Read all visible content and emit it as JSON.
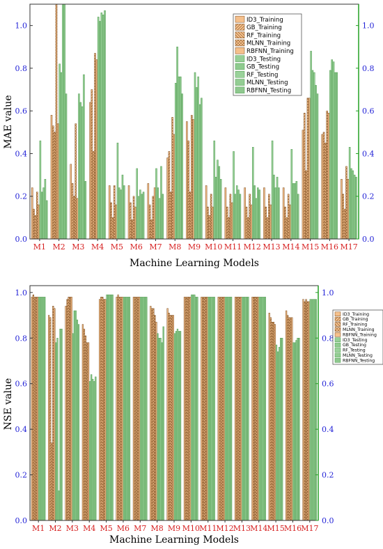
{
  "colors": {
    "training": "#f5c08c",
    "training_stroke": "#7a4a1c",
    "testing": "#97cf97",
    "testing_stroke": "#4f9a4f",
    "right_axis": "#22a022",
    "tick_text": "#1f1fd6",
    "category_text": "#d62020"
  },
  "chart_data": [
    {
      "type": "bar",
      "ylabel": "MAE value",
      "xlabel": "Machine Learning Models",
      "ylim": [
        0,
        1.1
      ],
      "yticks": [
        "0.0",
        "0.2",
        "0.4",
        "0.6",
        "0.8",
        "1.0"
      ],
      "categories": [
        "M1",
        "M2",
        "M3",
        "M4",
        "M5",
        "M6",
        "M7",
        "M8",
        "M9",
        "M10",
        "M11",
        "M12",
        "M13",
        "M14",
        "M15",
        "M16",
        "M17"
      ],
      "legend_position": "top-right",
      "series": [
        {
          "name": "ID3_Training",
          "group": "training",
          "values": [
            0.24,
            0.58,
            0.35,
            0.64,
            0.25,
            0.25,
            0.26,
            0.38,
            0.55,
            0.25,
            0.24,
            0.24,
            0.24,
            0.24,
            0.51,
            0.49,
            0.28
          ]
        },
        {
          "name": "GB_Training",
          "group": "training",
          "values": [
            0.14,
            0.53,
            0.26,
            0.7,
            0.17,
            0.17,
            0.16,
            0.41,
            0.46,
            0.15,
            0.15,
            0.15,
            0.15,
            0.15,
            0.59,
            0.5,
            0.21
          ]
        },
        {
          "name": "RF_Training",
          "group": "training",
          "values": [
            0.11,
            0.5,
            0.2,
            0.41,
            0.1,
            0.09,
            0.09,
            0.22,
            0.22,
            0.11,
            0.1,
            0.1,
            0.1,
            0.1,
            0.32,
            0.45,
            0.14
          ]
        },
        {
          "name": "MLNN_Training",
          "group": "training",
          "values": [
            0.22,
            1.1,
            0.54,
            0.87,
            0.25,
            0.2,
            0.2,
            0.57,
            0.58,
            0.21,
            0.21,
            0.21,
            0.21,
            0.21,
            0.66,
            0.6,
            0.34
          ]
        },
        {
          "name": "RBFNN_Training",
          "group": "training",
          "values": [
            0.16,
            0.54,
            0.19,
            0.84,
            0.16,
            0.15,
            0.24,
            0.49,
            0.56,
            0.15,
            0.17,
            0.16,
            0.16,
            0.16,
            0.66,
            0.59,
            0.28
          ]
        },
        {
          "name": "ID3_Testing",
          "group": "testing",
          "values": [
            0.46,
            0.82,
            0.68,
            1.04,
            0.45,
            0.33,
            0.33,
            0.73,
            0.78,
            0.46,
            0.41,
            0.43,
            0.46,
            0.42,
            0.88,
            0.79,
            0.43
          ]
        },
        {
          "name": "GB_Testing",
          "group": "testing",
          "values": [
            0.22,
            0.78,
            0.64,
            1.02,
            0.24,
            0.2,
            0.24,
            0.9,
            0.71,
            0.29,
            0.21,
            0.25,
            0.3,
            0.26,
            0.79,
            0.84,
            0.33
          ]
        },
        {
          "name": "RF_Testing",
          "group": "testing",
          "values": [
            0.24,
            1.1,
            0.62,
            1.06,
            0.23,
            0.23,
            0.19,
            0.76,
            0.76,
            0.37,
            0.25,
            0.19,
            0.24,
            0.26,
            0.78,
            0.83,
            0.32
          ]
        },
        {
          "name": "MLNN_Testing",
          "group": "testing",
          "values": [
            0.28,
            1.1,
            0.77,
            1.05,
            0.3,
            0.21,
            0.34,
            0.76,
            0.63,
            0.34,
            0.23,
            0.24,
            0.29,
            0.27,
            0.72,
            0.78,
            0.3
          ]
        },
        {
          "name": "RBFNN_Testing",
          "group": "testing",
          "values": [
            0.18,
            0.68,
            0.27,
            1.07,
            0.25,
            0.22,
            0.21,
            0.68,
            0.66,
            0.28,
            0.21,
            0.23,
            0.24,
            0.21,
            0.68,
            0.78,
            0.29
          ]
        }
      ]
    },
    {
      "type": "bar",
      "ylabel": "NSE value",
      "xlabel": "Machine Learning Models",
      "ylim": [
        0,
        1.03
      ],
      "yticks": [
        "0.0",
        "0.2",
        "0.4",
        "0.6",
        "0.8",
        "1.0"
      ],
      "categories": [
        "M1",
        "M2",
        "M3",
        "M4",
        "M5",
        "M6",
        "M7",
        "M8",
        "M9",
        "M10",
        "M11",
        "M12",
        "M13",
        "M14",
        "M15",
        "M16",
        "M17"
      ],
      "legend_position": "top-right",
      "series": [
        {
          "name": "ID3_Training",
          "group": "training",
          "values": [
            0.98,
            0.9,
            0.94,
            0.86,
            0.97,
            0.98,
            0.98,
            0.94,
            0.93,
            0.98,
            0.98,
            0.98,
            0.98,
            0.98,
            0.91,
            0.92,
            0.97
          ]
        },
        {
          "name": "GB_Training",
          "group": "training",
          "values": [
            0.99,
            0.89,
            0.97,
            0.84,
            0.98,
            0.99,
            0.98,
            0.93,
            0.91,
            0.98,
            0.98,
            0.98,
            0.98,
            0.98,
            0.89,
            0.9,
            0.96
          ]
        },
        {
          "name": "RF_Training",
          "group": "training",
          "values": [
            0.98,
            0.34,
            0.98,
            0.81,
            0.98,
            0.98,
            0.98,
            0.93,
            0.9,
            0.98,
            0.98,
            0.98,
            0.98,
            0.98,
            0.87,
            0.89,
            0.97
          ]
        },
        {
          "name": "MLNN_Training",
          "group": "training",
          "values": [
            0.98,
            0.94,
            0.98,
            0.78,
            0.97,
            0.98,
            0.98,
            0.9,
            0.9,
            0.98,
            0.98,
            0.98,
            0.98,
            0.98,
            0.87,
            0.89,
            0.96
          ]
        },
        {
          "name": "RBFNN_Training",
          "group": "training",
          "values": [
            0.98,
            0.93,
            0.98,
            0.78,
            0.97,
            0.98,
            0.98,
            0.87,
            0.9,
            0.98,
            0.98,
            0.98,
            0.98,
            0.98,
            0.86,
            0.89,
            0.96
          ]
        },
        {
          "name": "ID3_Testing",
          "group": "testing",
          "values": [
            0.98,
            0.78,
            0.82,
            0.61,
            0.99,
            0.98,
            0.98,
            0.82,
            0.82,
            0.99,
            0.98,
            0.98,
            0.98,
            0.98,
            0.77,
            0.78,
            0.97
          ]
        },
        {
          "name": "GB_Testing",
          "group": "testing",
          "values": [
            0.98,
            0.8,
            0.92,
            0.64,
            0.99,
            0.98,
            0.98,
            0.8,
            0.83,
            0.99,
            0.98,
            0.98,
            0.98,
            0.98,
            0.74,
            0.78,
            0.97
          ]
        },
        {
          "name": "RF_Testing",
          "group": "testing",
          "values": [
            0.98,
            0.13,
            0.92,
            0.62,
            0.99,
            0.98,
            0.98,
            0.8,
            0.84,
            0.99,
            0.98,
            0.98,
            0.98,
            0.98,
            0.76,
            0.79,
            0.97
          ]
        },
        {
          "name": "MLNN_Testing",
          "group": "testing",
          "values": [
            0.98,
            0.84,
            0.88,
            0.61,
            0.99,
            0.98,
            0.98,
            0.78,
            0.83,
            0.98,
            0.98,
            0.98,
            0.98,
            0.98,
            0.8,
            0.8,
            0.97
          ]
        },
        {
          "name": "RBFNN_Testing",
          "group": "testing",
          "values": [
            0.98,
            0.84,
            0.86,
            0.63,
            0.99,
            0.98,
            0.98,
            0.85,
            0.83,
            0.98,
            0.98,
            0.98,
            0.98,
            0.98,
            0.8,
            0.8,
            0.97
          ]
        }
      ]
    }
  ]
}
